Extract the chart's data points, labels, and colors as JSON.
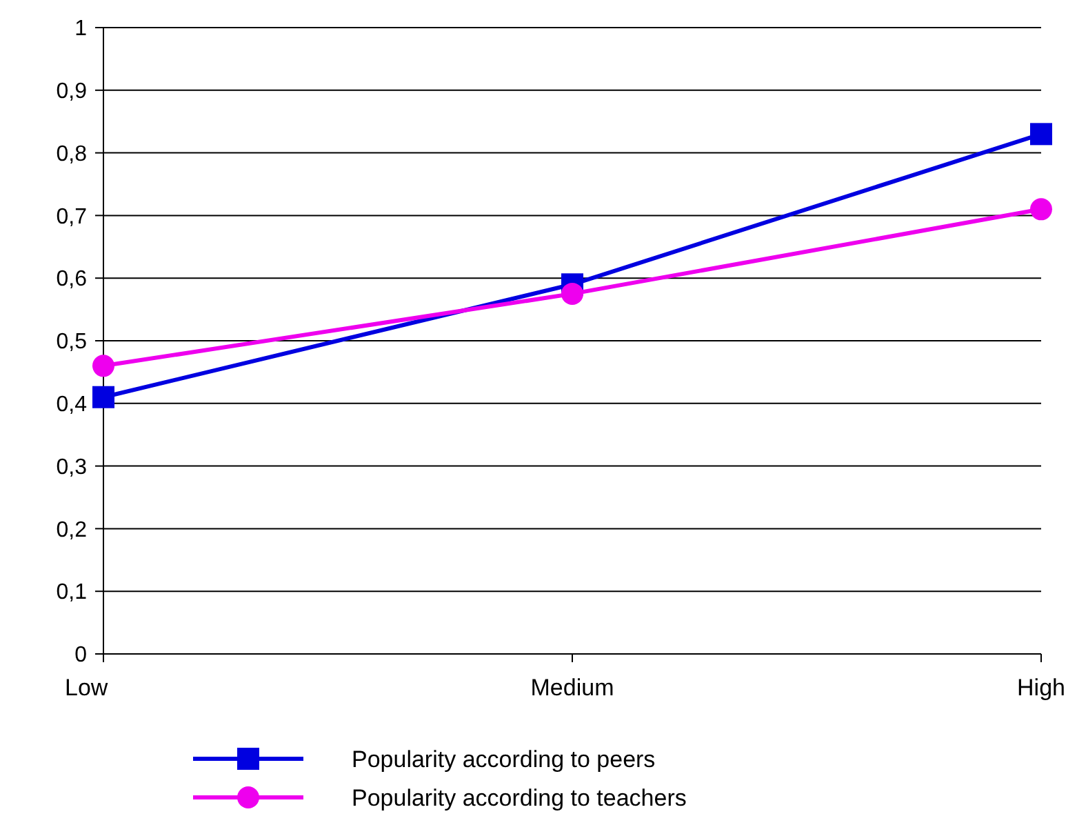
{
  "chart_data": {
    "type": "line",
    "categories": [
      "Low",
      "Medium",
      "High"
    ],
    "series": [
      {
        "name": "Popularity according to peers",
        "color": "#0000e0",
        "marker": "square",
        "values": [
          0.41,
          0.59,
          0.83
        ]
      },
      {
        "name": "Popularity according to teachers",
        "color": "#ee00ee",
        "marker": "circle",
        "values": [
          0.46,
          0.575,
          0.71
        ]
      }
    ],
    "ylim": [
      0,
      1
    ],
    "yticks": [
      0,
      {
        "value": 0.1,
        "label": "0,1"
      },
      {
        "value": 0.2,
        "label": "0,2"
      },
      {
        "value": 0.3,
        "label": "0,3"
      },
      {
        "value": 0.4,
        "label": "0,4"
      },
      {
        "value": 0.5,
        "label": "0,5"
      },
      {
        "value": 0.6,
        "label": "0,6"
      },
      {
        "value": 0.7,
        "label": "0,7"
      },
      {
        "value": 0.8,
        "label": "0,8"
      },
      {
        "value": 0.9,
        "label": "0,9"
      },
      1
    ],
    "grid": "y",
    "legend": "bottom",
    "line_style": "solid"
  }
}
